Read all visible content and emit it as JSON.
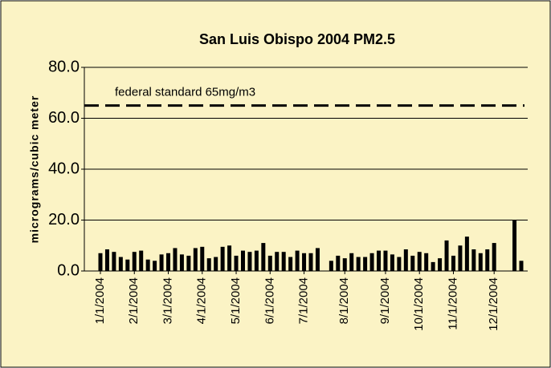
{
  "chart_data": {
    "type": "bar",
    "title": "San Luis Obispo 2004 PM2.5",
    "y_label": "micrograms/cubic meter",
    "reference_line": {
      "value": 65,
      "label": "federal standard 65mg/m3"
    },
    "categories": [
      "1/1/2004",
      null,
      null,
      null,
      null,
      "2/1/2004",
      null,
      null,
      null,
      null,
      "3/1/2004",
      null,
      null,
      null,
      null,
      "4/1/2004",
      null,
      null,
      null,
      null,
      "5/1/2004",
      null,
      null,
      null,
      null,
      "6/1/2004",
      null,
      null,
      null,
      null,
      "7/1/2004",
      null,
      null,
      null,
      null,
      null,
      "8/1/2004",
      null,
      null,
      null,
      null,
      null,
      "9/1/2004",
      null,
      null,
      null,
      null,
      "10/1/2004",
      null,
      null,
      null,
      null,
      "11/1/2004",
      null,
      null,
      null,
      null,
      null,
      "12/1/2004",
      null,
      null,
      null,
      null
    ],
    "values": [
      7,
      8.5,
      7.5,
      5.5,
      4.5,
      7.5,
      8,
      4.5,
      4,
      6.5,
      7,
      9,
      6.5,
      6,
      9,
      9.5,
      5,
      5.5,
      9.5,
      10,
      6,
      8,
      7.5,
      8,
      11,
      6,
      7.5,
      7.5,
      5.5,
      8,
      7,
      7,
      9,
      null,
      4,
      6,
      5,
      7,
      5.5,
      5.5,
      7,
      8,
      8,
      6.5,
      5.5,
      8.5,
      6,
      7.5,
      7,
      3.5,
      5,
      12,
      6,
      10,
      13.5,
      8.5,
      7,
      8.5,
      11,
      null,
      null,
      20,
      4
    ],
    "color": "#000000",
    "ylim": [
      0,
      80
    ],
    "yticks": [
      {
        "value": 0,
        "label": "0.0"
      },
      {
        "value": 20,
        "label": "20.0"
      },
      {
        "value": 40,
        "label": "40.0"
      },
      {
        "value": 60,
        "label": "60.0"
      },
      {
        "value": 80,
        "label": "80.0"
      }
    ],
    "grid": true
  }
}
